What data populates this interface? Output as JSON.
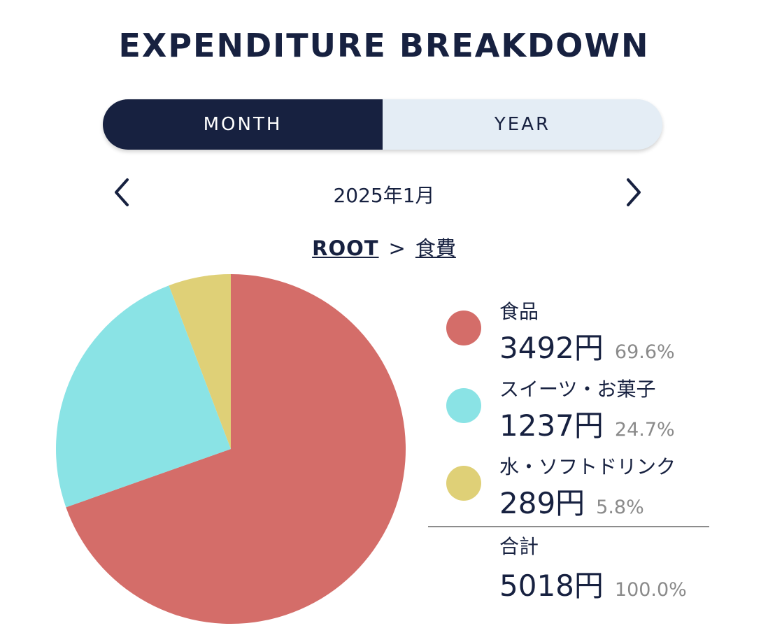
{
  "title": "EXPENDITURE BREAKDOWN",
  "toggle": {
    "month_label": "MONTH",
    "year_label": "YEAR",
    "active": "month"
  },
  "period": "2025年1月",
  "breadcrumb": {
    "root": "ROOT",
    "separator": ">",
    "current": "食費"
  },
  "chart_data": {
    "type": "pie",
    "categories": [
      "食品",
      "スイーツ・お菓子",
      "水・ソフトドリンク"
    ],
    "values": [
      3492,
      1237,
      289
    ],
    "value_labels": [
      "3492円",
      "1237円",
      "289円"
    ],
    "percent_labels": [
      "69.6%",
      "24.7%",
      "5.8%"
    ],
    "colors": [
      "#d46d69",
      "#8ae3e5",
      "#dfd077"
    ],
    "start_angle_deg": 0,
    "direction": "clockwise",
    "legend_position": "right",
    "total": {
      "label": "合計",
      "value_label": "5018円",
      "percent_label": "100.0%"
    }
  }
}
